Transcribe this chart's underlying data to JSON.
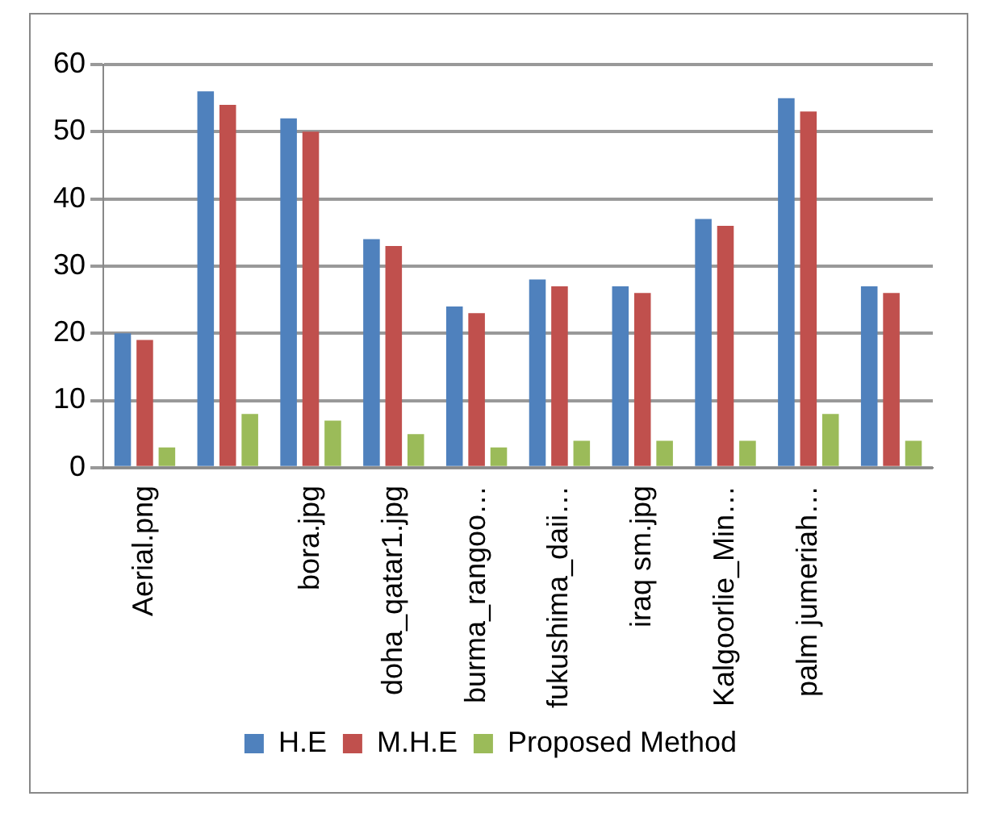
{
  "chart_data": {
    "type": "bar",
    "categories": [
      "Aerial.png",
      null,
      "bora.jpg",
      "doha_qatar1.jpg",
      "burma_rangoo…",
      "fukushima_daii…",
      "iraq sm.jpg",
      "Kalgoorlie_Min…",
      "palm jumeriah…",
      null
    ],
    "series": [
      {
        "name": "H.E",
        "color": "#4f81bd",
        "values": [
          20,
          56,
          52,
          34,
          24,
          28,
          27,
          37,
          55,
          27
        ]
      },
      {
        "name": "M.H.E",
        "color": "#c0504d",
        "values": [
          19,
          54,
          50,
          33,
          23,
          27,
          26,
          36,
          53,
          26
        ]
      },
      {
        "name": "Proposed Method",
        "color": "#9bbb59",
        "values": [
          3,
          8,
          7,
          5,
          3,
          4,
          4,
          4,
          8,
          4
        ]
      }
    ],
    "ylim": [
      0,
      60
    ],
    "yticks": [
      0,
      10,
      20,
      30,
      40,
      50,
      60
    ],
    "grid": "y",
    "legend": "bottom"
  }
}
